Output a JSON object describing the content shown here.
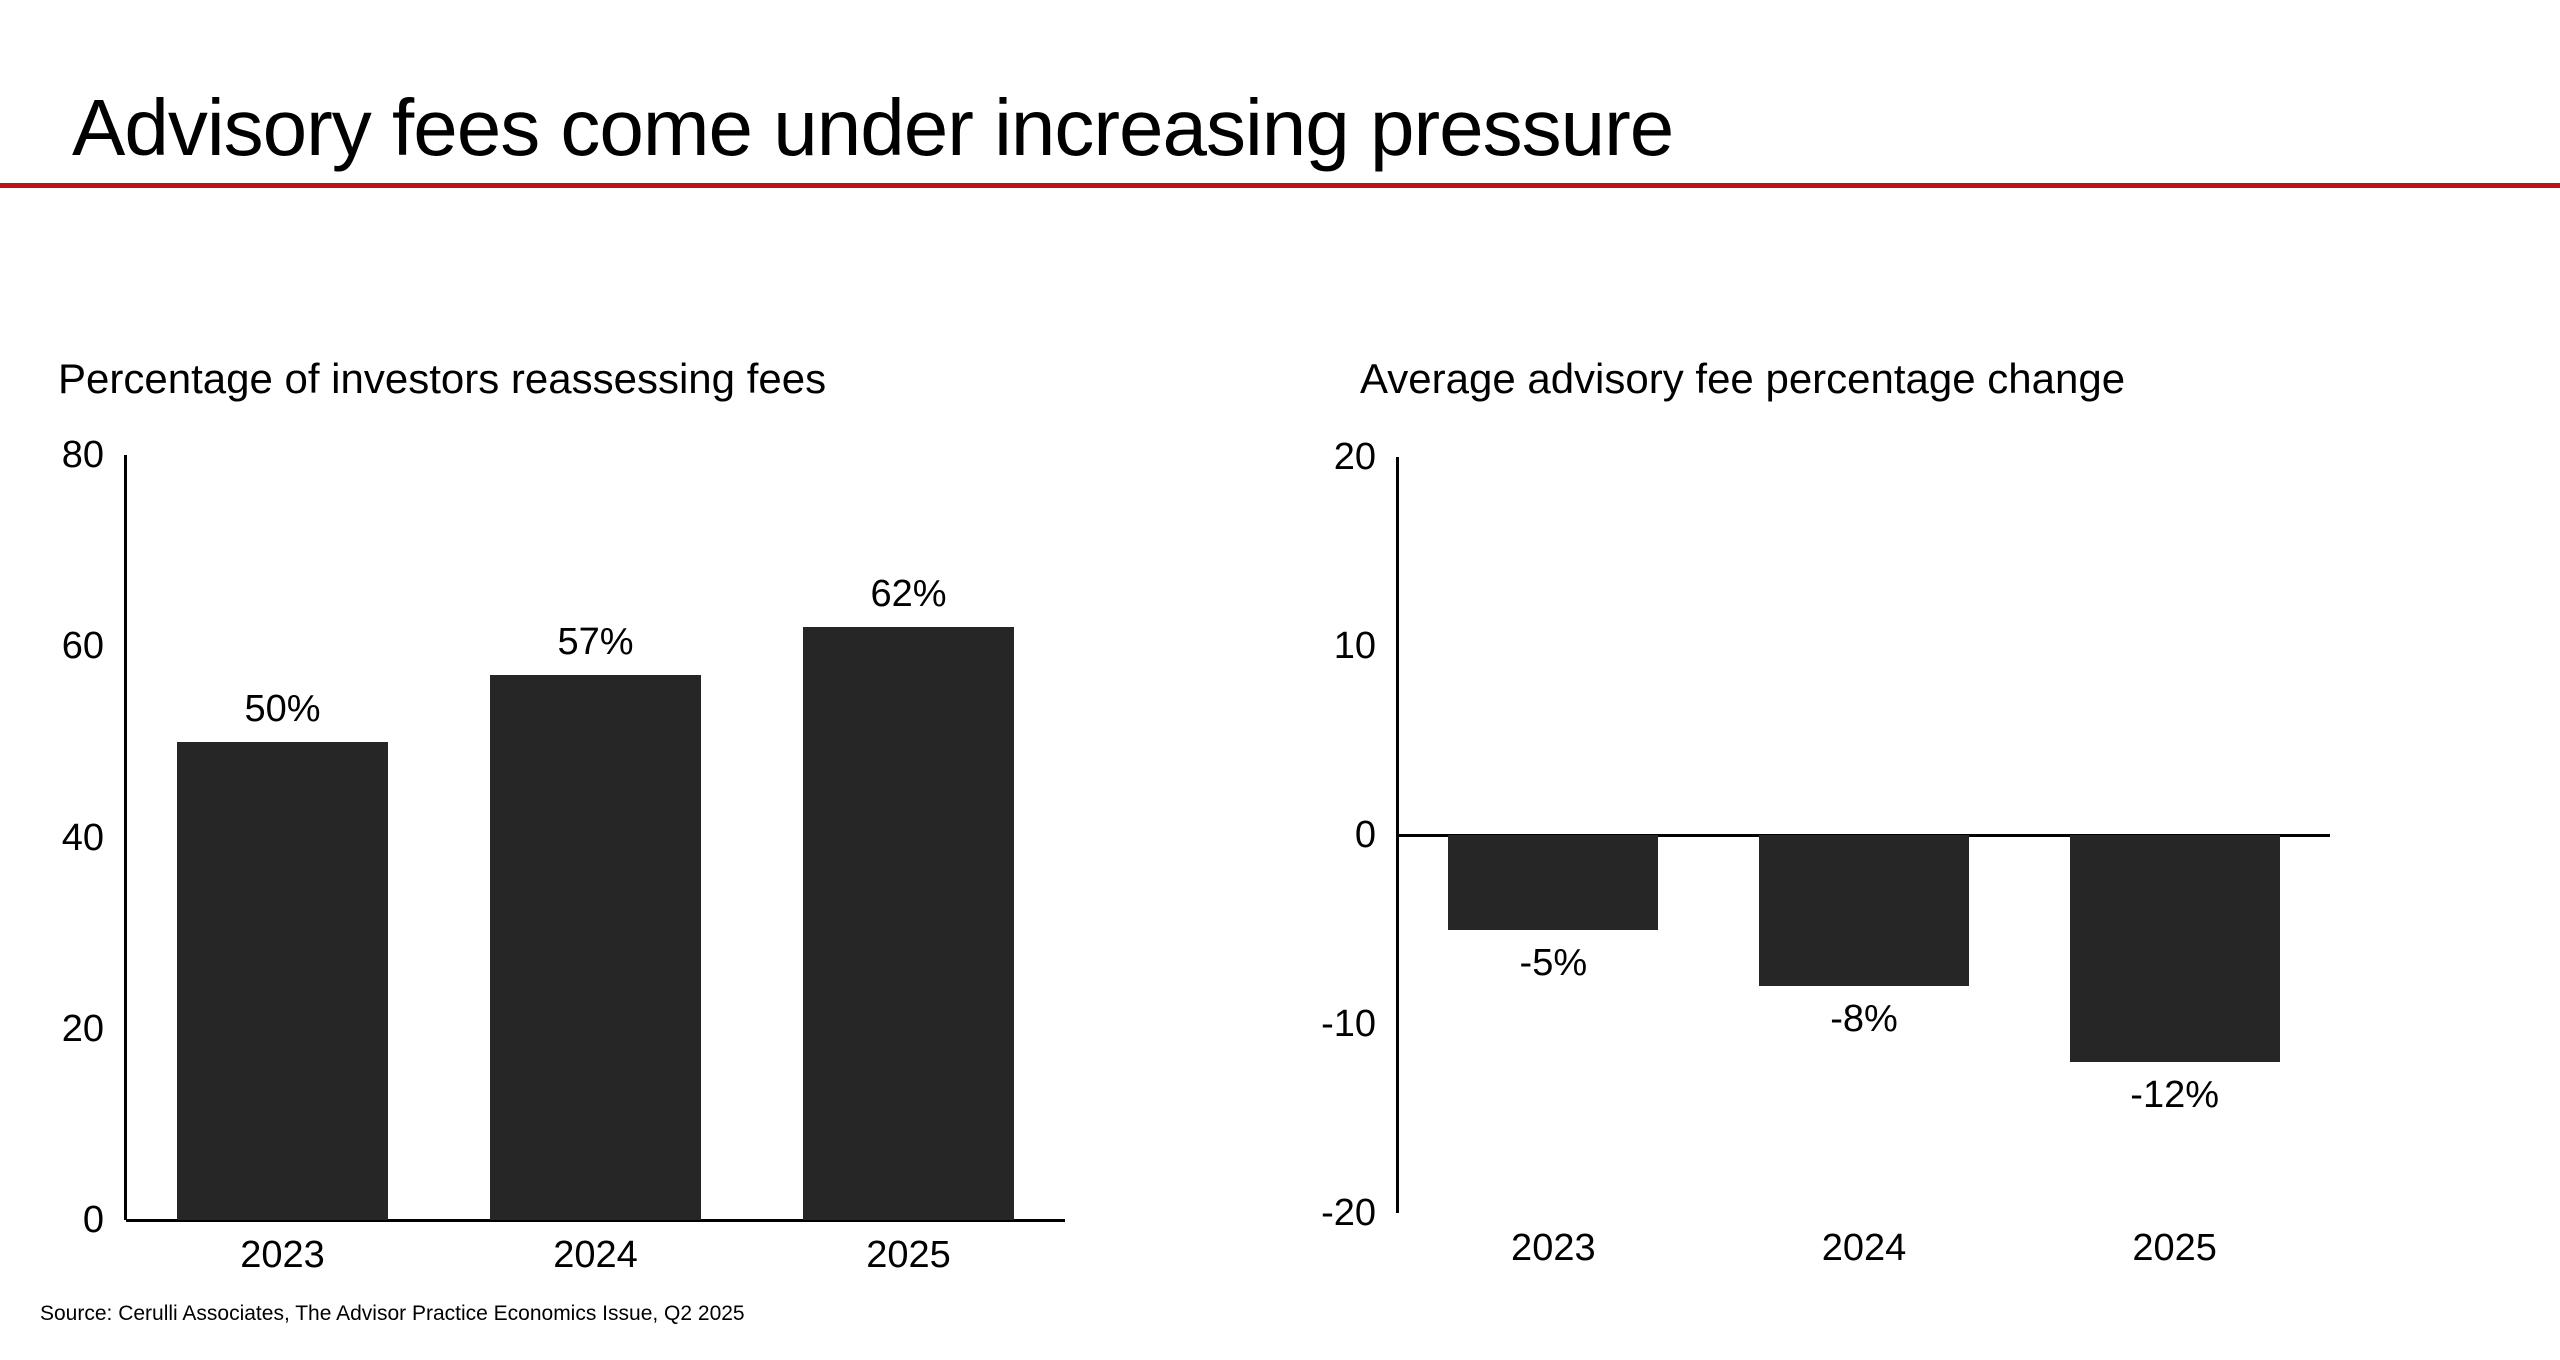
{
  "page": {
    "title": "Advisory fees come under increasing pressure",
    "source": "Source: Cerulli Associates, The Advisor Practice Economics Issue, Q2 2025",
    "accent_color": "#BE1119",
    "background_color": "#FFFFFF",
    "text_color": "#000000"
  },
  "chart_data": [
    {
      "type": "bar",
      "title": "Percentage of investors reassessing fees",
      "categories": [
        "2023",
        "2024",
        "2025"
      ],
      "values": [
        50,
        57,
        62
      ],
      "value_labels": [
        "50%",
        "57%",
        "62%"
      ],
      "ylim": [
        0,
        80
      ],
      "yticks": [
        0,
        20,
        40,
        60,
        80
      ],
      "grid": false,
      "legend": "none",
      "bar_color": "#262626",
      "label_position": "above"
    },
    {
      "type": "bar",
      "title": "Average advisory fee percentage change",
      "categories": [
        "2023",
        "2024",
        "2025"
      ],
      "values": [
        -5,
        -8,
        -12
      ],
      "value_labels": [
        "-5%",
        "-8%",
        "-12%"
      ],
      "ylim": [
        -20,
        20
      ],
      "yticks": [
        -20,
        -10,
        0,
        10,
        20
      ],
      "grid": false,
      "legend": "none",
      "bar_color": "#262626",
      "label_position": "below"
    }
  ]
}
